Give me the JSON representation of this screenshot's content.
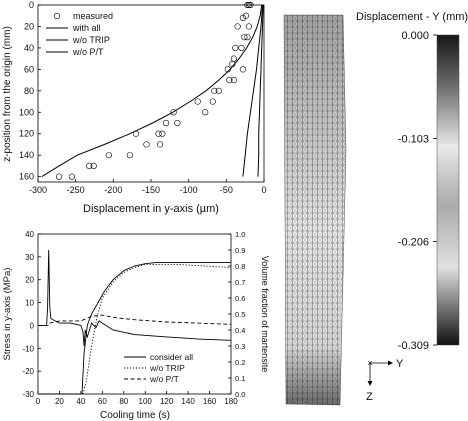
{
  "chart_data": [
    {
      "type": "line",
      "xlabel": "Displacement in y-axis (µm)",
      "ylabel": "z-position from the origin (mm)",
      "xlim": [
        -300,
        0
      ],
      "ylim": [
        0,
        165
      ],
      "y_inverted": true,
      "xticks": [
        "-300",
        "-250",
        "-200",
        "-150",
        "-100",
        "-50",
        "0"
      ],
      "yticks": [
        "0",
        "20",
        "40",
        "60",
        "80",
        "100",
        "120",
        "140",
        "160"
      ],
      "legend_position": "top-left",
      "series": [
        {
          "name": "measured",
          "style": "circle-markers",
          "points": [
            [
              -22,
              0
            ],
            [
              -20,
              0
            ],
            [
              -18,
              0
            ],
            [
              -24,
              10
            ],
            [
              -28,
              12
            ],
            [
              -20,
              20
            ],
            [
              -35,
              20
            ],
            [
              -22,
              30
            ],
            [
              -26,
              30
            ],
            [
              -38,
              40
            ],
            [
              -30,
              40
            ],
            [
              -40,
              50
            ],
            [
              -42,
              55
            ],
            [
              -28,
              60
            ],
            [
              -48,
              60
            ],
            [
              -40,
              70
            ],
            [
              -46,
              70
            ],
            [
              -66,
              80
            ],
            [
              -60,
              80
            ],
            [
              -88,
              90
            ],
            [
              -68,
              90
            ],
            [
              -78,
              100
            ],
            [
              -120,
              100
            ],
            [
              -115,
              110
            ],
            [
              -130,
              110
            ],
            [
              -140,
              120
            ],
            [
              -135,
              120
            ],
            [
              -170,
              120
            ],
            [
              -156,
              130
            ],
            [
              -138,
              130
            ],
            [
              -178,
              140
            ],
            [
              -206,
              140
            ],
            [
              -226,
              150
            ],
            [
              -232,
              150
            ],
            [
              -255,
              160
            ],
            [
              -272,
              160
            ]
          ]
        },
        {
          "name": "with all",
          "style": "solid",
          "points": [
            [
              -3,
              0
            ],
            [
              -5,
              10
            ],
            [
              -9,
              20
            ],
            [
              -15,
              30
            ],
            [
              -23,
              40
            ],
            [
              -33,
              50
            ],
            [
              -45,
              60
            ],
            [
              -60,
              70
            ],
            [
              -77,
              80
            ],
            [
              -98,
              90
            ],
            [
              -121,
              100
            ],
            [
              -148,
              110
            ],
            [
              -178,
              120
            ],
            [
              -212,
              130
            ],
            [
              -248,
              140
            ],
            [
              -272,
              150
            ],
            [
              -295,
              160
            ]
          ]
        },
        {
          "name": "w/o TRIP",
          "style": "solid",
          "points": [
            [
              -2,
              0
            ],
            [
              -4,
              20
            ],
            [
              -7,
              40
            ],
            [
              -10,
              60
            ],
            [
              -14,
              80
            ],
            [
              -18,
              100
            ],
            [
              -22,
              120
            ],
            [
              -25,
              140
            ],
            [
              -28,
              160
            ]
          ]
        },
        {
          "name": "w/o P/T",
          "style": "solid",
          "points": [
            [
              -1,
              0
            ],
            [
              -2,
              20
            ],
            [
              -3,
              40
            ],
            [
              -4,
              60
            ],
            [
              -5,
              80
            ],
            [
              -6,
              100
            ],
            [
              -7,
              120
            ],
            [
              -7,
              140
            ],
            [
              -8,
              160
            ]
          ]
        }
      ]
    },
    {
      "type": "line",
      "xlabel": "Cooling time (s)",
      "ylabel": "Stress in y-axis (MPa)",
      "y2label": "Volume fraction of martensite",
      "xlim": [
        0,
        180
      ],
      "ylim": [
        -30,
        40
      ],
      "y2lim": [
        0,
        1.0
      ],
      "xticks": [
        "0",
        "20",
        "40",
        "60",
        "80",
        "100",
        "120",
        "140",
        "160",
        "180"
      ],
      "yticks": [
        "-30",
        "-20",
        "-10",
        "0",
        "10",
        "20",
        "30",
        "40"
      ],
      "y2ticks": [
        "0.0",
        "0.1",
        "0.2",
        "0.3",
        "0.4",
        "0.5",
        "0.6",
        "0.7",
        "0.8",
        "0.9",
        "1.0"
      ],
      "legend_position": "bottom-right",
      "series": [
        {
          "name": "consider all",
          "style": "solid",
          "axis": "left",
          "points": [
            [
              0,
              0
            ],
            [
              8,
              0
            ],
            [
              9,
              8
            ],
            [
              10,
              33
            ],
            [
              11,
              8
            ],
            [
              12,
              3
            ],
            [
              20,
              1
            ],
            [
              30,
              1
            ],
            [
              40,
              0
            ],
            [
              42,
              -3
            ],
            [
              43,
              -9
            ],
            [
              44,
              -2
            ],
            [
              46,
              -5
            ],
            [
              48,
              -2
            ],
            [
              50,
              1
            ],
            [
              54,
              -1
            ],
            [
              57,
              2
            ],
            [
              60,
              1
            ],
            [
              70,
              -2
            ],
            [
              90,
              -4
            ],
            [
              120,
              -5
            ],
            [
              150,
              -6
            ],
            [
              180,
              -6.5
            ]
          ]
        },
        {
          "name": "w/o TRIP",
          "style": "dotted",
          "axis": "right",
          "points": [
            [
              0,
              0
            ],
            [
              42,
              0
            ],
            [
              45,
              0.08
            ],
            [
              50,
              0.3
            ],
            [
              55,
              0.48
            ],
            [
              60,
              0.6
            ],
            [
              70,
              0.7
            ],
            [
              80,
              0.76
            ],
            [
              90,
              0.79
            ],
            [
              100,
              0.81
            ],
            [
              130,
              0.81
            ],
            [
              180,
              0.79
            ]
          ]
        },
        {
          "name": "w/o P/T",
          "style": "dashed",
          "axis": "left",
          "points": [
            [
              0,
              0
            ],
            [
              10,
              0
            ],
            [
              11,
              1
            ],
            [
              20,
              2
            ],
            [
              40,
              2
            ],
            [
              50,
              4
            ],
            [
              60,
              4.5
            ],
            [
              70,
              3.5
            ],
            [
              90,
              2.5
            ],
            [
              120,
              1.5
            ],
            [
              150,
              1
            ],
            [
              180,
              0.5
            ]
          ]
        },
        {
          "name": "",
          "style": "solid",
          "axis": "left",
          "points": [
            [
              0,
              -30
            ],
            [
              41,
              -30
            ],
            [
              43,
              -12
            ],
            [
              46,
              0
            ],
            [
              50,
              5
            ],
            [
              56,
              10
            ],
            [
              62,
              15
            ],
            [
              70,
              20
            ],
            [
              80,
              24
            ],
            [
              90,
              26
            ],
            [
              100,
              27
            ],
            [
              110,
              27.5
            ],
            [
              120,
              27.5
            ],
            [
              180,
              27.5
            ]
          ]
        }
      ]
    },
    {
      "type": "heatmap",
      "title": "Displacement - Y (mm)",
      "colorbar_ticks": [
        "0.000",
        "-0.103",
        "-0.206",
        "-0.309"
      ],
      "colorbar_range": [
        -0.309,
        0.0
      ],
      "axis_labels": {
        "x": "Y",
        "z": "Z"
      }
    }
  ]
}
